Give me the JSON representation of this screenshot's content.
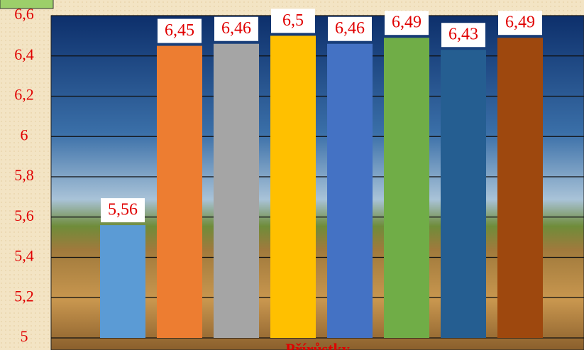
{
  "chart_data": {
    "type": "bar",
    "categories": [
      "Přírůstky"
    ],
    "series": [
      {
        "color": "#5b9bd5",
        "values": [
          5.56
        ],
        "value_labels": [
          "5,56"
        ]
      },
      {
        "color": "#ed7d31",
        "values": [
          6.45
        ],
        "value_labels": [
          "6,45"
        ]
      },
      {
        "color": "#a5a5a5",
        "values": [
          6.46
        ],
        "value_labels": [
          "6,46"
        ]
      },
      {
        "color": "#ffc000",
        "values": [
          6.5
        ],
        "value_labels": [
          "6,5"
        ]
      },
      {
        "color": "#4472c4",
        "values": [
          6.46
        ],
        "value_labels": [
          "6,46"
        ]
      },
      {
        "color": "#70ad47",
        "values": [
          6.49
        ],
        "value_labels": [
          "6,49"
        ]
      },
      {
        "color": "#255e91",
        "values": [
          6.43
        ],
        "value_labels": [
          "6,43"
        ]
      },
      {
        "color": "#9e480e",
        "values": [
          6.49
        ],
        "value_labels": [
          "6,49"
        ]
      }
    ],
    "ylim": [
      5,
      6.6
    ],
    "yticks": [
      5,
      {
        "value": 5.2,
        "label": "5,2"
      },
      {
        "value": 5.4,
        "label": "5,4"
      },
      {
        "value": 5.6,
        "label": "5,6"
      },
      {
        "value": 5.8,
        "label": "5,8"
      },
      6,
      {
        "value": 6.2,
        "label": "6,2"
      },
      {
        "value": 6.4,
        "label": "6,4"
      },
      {
        "value": 6.6,
        "label": "6,6"
      }
    ],
    "grid": true
  }
}
